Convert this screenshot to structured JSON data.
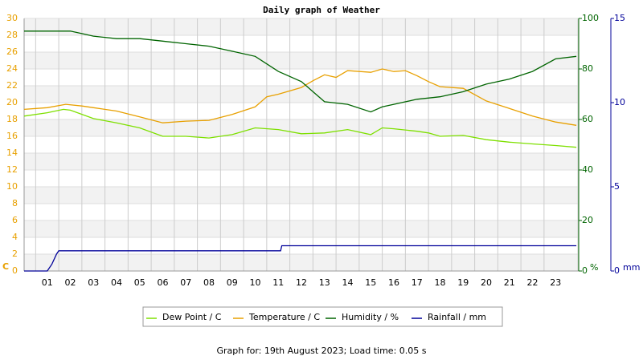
{
  "chart_data": {
    "type": "line",
    "title": "Daily graph of Weather",
    "footer": "Graph for: 19th August 2023; Load time: 0.05 s",
    "xlim": [
      0,
      24
    ],
    "xticks": [
      {
        "value": 1,
        "label": "01"
      },
      {
        "value": 2,
        "label": "02"
      },
      {
        "value": 3,
        "label": "03"
      },
      {
        "value": 4,
        "label": "04"
      },
      {
        "value": 5,
        "label": "05"
      },
      {
        "value": 6,
        "label": "06"
      },
      {
        "value": 7,
        "label": "07"
      },
      {
        "value": 8,
        "label": "08"
      },
      {
        "value": 9,
        "label": "09"
      },
      {
        "value": 10,
        "label": "10"
      },
      {
        "value": 11,
        "label": "11"
      },
      {
        "value": 12,
        "label": "12"
      },
      {
        "value": 13,
        "label": "13"
      },
      {
        "value": 14,
        "label": "14"
      },
      {
        "value": 15,
        "label": "15"
      },
      {
        "value": 16,
        "label": "16"
      },
      {
        "value": 17,
        "label": "17"
      },
      {
        "value": 18,
        "label": "18"
      },
      {
        "value": 19,
        "label": "19"
      },
      {
        "value": 20,
        "label": "20"
      },
      {
        "value": 21,
        "label": "21"
      },
      {
        "value": 22,
        "label": "22"
      },
      {
        "value": 23,
        "label": "23"
      }
    ],
    "ylim": [
      0,
      30
    ],
    "yticks": [
      0,
      2,
      4,
      6,
      8,
      10,
      12,
      14,
      16,
      18,
      20,
      22,
      24,
      26,
      28,
      30
    ],
    "ylabel": "C",
    "ycolor": "#e8a000",
    "y2lim": [
      0,
      100
    ],
    "y2ticks": [
      0,
      20,
      40,
      60,
      80,
      100
    ],
    "y2label": "%",
    "y2color": "#006400",
    "y3lim": [
      0,
      15
    ],
    "y3ticks": [
      0,
      5,
      10,
      15
    ],
    "y3label": "mm",
    "y3color": "#000099",
    "grid": true,
    "series": [
      {
        "name": "Dew Point / C",
        "color": "#7ee000",
        "axis": "y",
        "x": [
          0,
          1,
          1.7,
          2,
          3,
          4,
          5,
          6,
          7,
          8,
          9,
          10,
          11,
          12,
          13,
          14,
          15,
          15.5,
          16,
          17,
          17.5,
          18,
          19,
          20,
          21,
          22,
          23,
          23.9
        ],
        "values": [
          18.4,
          18.8,
          19.2,
          19.1,
          18.1,
          17.6,
          17.0,
          16.0,
          16.0,
          15.8,
          16.2,
          17.0,
          16.8,
          16.3,
          16.4,
          16.8,
          16.2,
          17.0,
          16.9,
          16.6,
          16.4,
          16.0,
          16.1,
          15.6,
          15.3,
          15.1,
          14.9,
          14.7
        ]
      },
      {
        "name": "Temperature / C",
        "color": "#e8a000",
        "axis": "y",
        "x": [
          0,
          1,
          1.8,
          2.5,
          3,
          4,
          5,
          6,
          7,
          8,
          9,
          10,
          10.5,
          11,
          12,
          12.5,
          13,
          13.5,
          14,
          15,
          15.5,
          16,
          16.5,
          17,
          17.5,
          18,
          19,
          20,
          21,
          22,
          23,
          23.9
        ],
        "values": [
          19.2,
          19.4,
          19.8,
          19.6,
          19.4,
          19.0,
          18.3,
          17.6,
          17.8,
          17.9,
          18.6,
          19.5,
          20.7,
          21.0,
          21.8,
          22.6,
          23.3,
          23.0,
          23.8,
          23.6,
          24.0,
          23.7,
          23.8,
          23.2,
          22.5,
          21.9,
          21.7,
          20.2,
          19.3,
          18.4,
          17.7,
          17.3
        ]
      },
      {
        "name": "Humidity / %",
        "color": "#006400",
        "axis": "y2",
        "x": [
          0,
          2,
          2.5,
          3,
          4,
          5,
          6,
          7,
          8,
          9,
          10,
          10.5,
          11,
          12,
          12.5,
          13,
          14,
          15,
          15.5,
          16,
          17,
          18,
          19,
          20,
          21,
          22,
          23,
          23.9
        ],
        "values": [
          95,
          95,
          94,
          93,
          92,
          92,
          91,
          90,
          89,
          87,
          85,
          82,
          79,
          75,
          71,
          67,
          66,
          63,
          65,
          66,
          68,
          69,
          71,
          74,
          76,
          79,
          84,
          85
        ]
      },
      {
        "name": "Rainfall / mm",
        "color": "#000099",
        "axis": "y3",
        "x": [
          0,
          1,
          1.2,
          1.4,
          1.5,
          11.1,
          11.15,
          23.9
        ],
        "values": [
          0,
          0,
          0.4,
          1.0,
          1.2,
          1.2,
          1.5,
          1.5
        ]
      }
    ]
  }
}
